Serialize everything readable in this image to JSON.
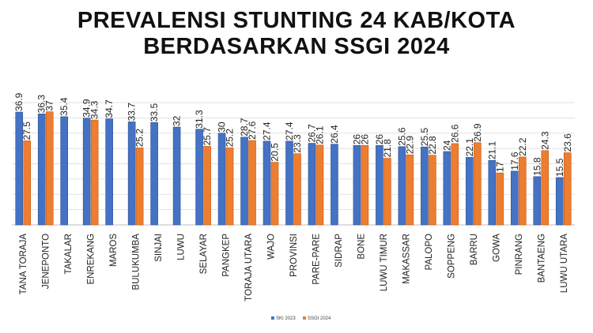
{
  "title_lines": [
    "PREVALENSI STUNTING 24 KAB/KOTA",
    "BERDASARKAN SSGI 2024"
  ],
  "chart_data": {
    "type": "bar",
    "title": "PREVALENSI STUNTING 24 KAB/KOTA BERDASARKAN SSGI 2024",
    "categories": [
      "TANA TORAJA",
      "JENEPONTO",
      "TAKALAR",
      "ENREKANG",
      "MAROS",
      "BULUKUMBA",
      "SINJAI",
      "LUWU",
      "SELAYAR",
      "PANGKEP",
      "TORAJA UTARA",
      "WAJO",
      "PROVINSI",
      "PARE-PARE",
      "SIDRAP",
      "BONE",
      "LUWU TIMUR",
      "MAKASSAR",
      "PALOPO",
      "SOPPENG",
      "BARRU",
      "GOWA",
      "PINRANG",
      "BANTAENG",
      "LUWU UTARA"
    ],
    "series": [
      {
        "name": "SKI 2023",
        "color": "#4472c4",
        "values": [
          36.9,
          36.3,
          35.4,
          34.9,
          34.7,
          33.7,
          33.5,
          32,
          31.3,
          30,
          28.7,
          27.4,
          27.4,
          26.7,
          26.4,
          26,
          26,
          25.6,
          25.5,
          24,
          22.1,
          21.1,
          17.6,
          15.8,
          15.5
        ]
      },
      {
        "name": "SSGI 2024",
        "color": "#ed7d31",
        "values": [
          27.5,
          37,
          null,
          34.3,
          null,
          25.2,
          null,
          null,
          25.7,
          25.2,
          27.6,
          20.5,
          23.3,
          26.1,
          null,
          26,
          21.8,
          22.9,
          22.8,
          26.6,
          26.9,
          17,
          22.2,
          24.3,
          23.6
        ]
      }
    ],
    "value_labels": [
      [
        "36.9",
        "27.5"
      ],
      [
        "36.3",
        "37"
      ],
      [
        "35.4",
        ""
      ],
      [
        "34.9",
        "34.3"
      ],
      [
        "34.7",
        ""
      ],
      [
        "33.7",
        "25.2"
      ],
      [
        "33.5",
        ""
      ],
      [
        "32",
        ""
      ],
      [
        "31.3",
        "25.7"
      ],
      [
        "30",
        "25.2"
      ],
      [
        "28.7",
        "27.6"
      ],
      [
        "27.4",
        "20.5"
      ],
      [
        "27.4",
        "23.3"
      ],
      [
        "26.7",
        "26.1"
      ],
      [
        "26.4",
        ""
      ],
      [
        "26",
        "26"
      ],
      [
        "26",
        "21.8"
      ],
      [
        "25.6",
        "22.9"
      ],
      [
        "25.5",
        "22.8"
      ],
      [
        "24",
        "26.6"
      ],
      [
        "22.1",
        "26.9"
      ],
      [
        "21.1",
        "17"
      ],
      [
        "17.6",
        "22.2"
      ],
      [
        "15.8",
        "24.3"
      ],
      [
        "15.5",
        "23.6"
      ]
    ],
    "ylim": [
      0,
      40
    ],
    "grid": true,
    "legend_position": "bottom",
    "xlabel": "",
    "ylabel": ""
  }
}
